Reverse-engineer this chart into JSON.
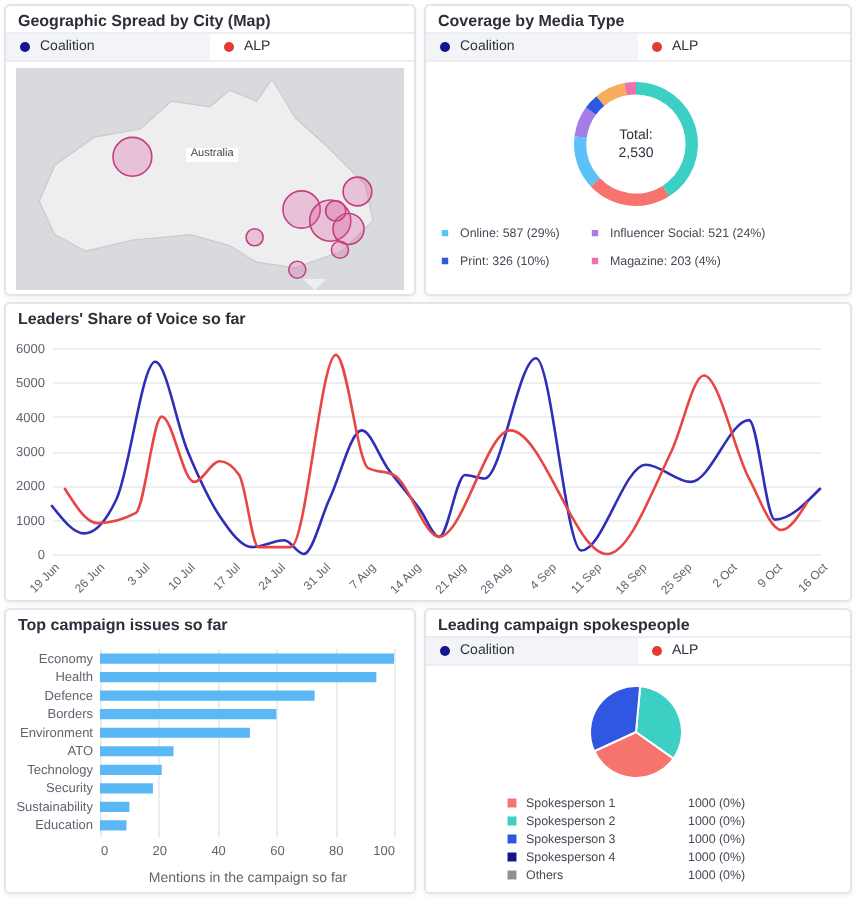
{
  "chart_data": [
    {
      "type": "other",
      "title": "Geographic Spread by City (Map)",
      "annotations": [
        "Coalition",
        "ALP",
        "Australia"
      ]
    },
    {
      "type": "donut",
      "title": "Coverage by Media Type",
      "categories": [
        null,
        null,
        "Online: 587 (29%)",
        "Influencer Social: 521 (24%)",
        "Print: 326 (10%)",
        null,
        "Magazine: 203 (4%)"
      ],
      "values": [
        41,
        22,
        14,
        8,
        4,
        8,
        3
      ],
      "colors": [
        "#3ccfc4",
        "#f7736e",
        "#5cc1f7",
        "#a67de6",
        "#2f57e2",
        "#f7ae5c",
        "#f06fae"
      ],
      "legend": "bottom",
      "annotations": [
        "Coalition",
        "ALP",
        "Total:",
        "2,530"
      ]
    },
    {
      "type": "line",
      "title": "Leaders' Share of Voice so far",
      "series": [
        {
          "color": "#2e2eb8",
          "x": [
            "--06-19",
            "--06-24",
            "--06-29",
            "--07-05",
            "--07-10",
            "--07-15",
            "--07-20",
            "--07-25",
            "--07-28",
            "--08-01",
            "--08-06",
            "--08-10",
            "--08-15",
            "--08-18",
            "--08-22",
            "--08-25",
            "--09-02",
            "--09-09",
            "--09-19",
            "--09-26",
            "--10-05",
            "--10-09",
            "--10-16"
          ],
          "values": [
            1400,
            600,
            1600,
            5600,
            3000,
            1100,
            200,
            400,
            0,
            1600,
            3600,
            2500,
            1300,
            500,
            2300,
            2200,
            5700,
            100,
            2600,
            2100,
            3900,
            1000,
            1900
          ]
        },
        {
          "color": "#e84545",
          "x": [
            "--06-21",
            "--06-26",
            "--07-02",
            "--07-06",
            "--07-11",
            "--07-15",
            "--07-18",
            "--07-21",
            "--07-26",
            "--08-02",
            "--08-07",
            "--08-11",
            "--08-18",
            "--08-29",
            "--09-13",
            "--09-23",
            "--09-28",
            "--10-05",
            "--10-10",
            "--10-14"
          ],
          "values": [
            1900,
            900,
            1200,
            4000,
            2100,
            2700,
            2300,
            200,
            200,
            5800,
            2500,
            2300,
            500,
            3600,
            0,
            3000,
            5200,
            2200,
            700,
            1500
          ]
        }
      ],
      "xlim": [
        "--06-19",
        "--10-16"
      ],
      "xticks": [
        {
          "value": "--06-19",
          "label": "19 Jun"
        },
        {
          "value": "--06-26",
          "label": "26 Jun"
        },
        {
          "value": "--07-03",
          "label": "3 Jul"
        },
        {
          "value": "--07-10",
          "label": "10 Jul"
        },
        {
          "value": "--07-17",
          "label": "17 Jul"
        },
        {
          "value": "--07-24",
          "label": "24 Jul"
        },
        {
          "value": "--07-31",
          "label": "31 Jul"
        },
        {
          "value": "--08-07",
          "label": "7 Aug"
        },
        {
          "value": "--08-14",
          "label": "14 Aug"
        },
        {
          "value": "--08-21",
          "label": "21 Aug"
        },
        {
          "value": "--08-28",
          "label": "28 Aug"
        },
        {
          "value": "--09-04",
          "label": "4 Sep"
        },
        {
          "value": "--09-11",
          "label": "11 Sep"
        },
        {
          "value": "--09-18",
          "label": "18 Sep"
        },
        {
          "value": "--09-25",
          "label": "25 Sep"
        },
        {
          "value": "--10-02",
          "label": "2 Oct"
        },
        {
          "value": "--10-09",
          "label": "9 Oct"
        },
        {
          "value": "--10-16",
          "label": "16 Oct"
        }
      ],
      "ylim": [
        0,
        6000
      ],
      "yticks": [
        0,
        1000,
        2000,
        3000,
        4000,
        5000,
        6000
      ],
      "grid": "y"
    },
    {
      "type": "bar",
      "orientation": "horizontal",
      "title": "Top campaign issues so far",
      "categories": [
        "Economy",
        "Health",
        "Defence",
        "Borders",
        "Environment",
        "ATO",
        "Technology",
        "Security",
        "Sustainability",
        "Education"
      ],
      "values": [
        100,
        94,
        73,
        60,
        51,
        25,
        21,
        18,
        10,
        9
      ],
      "color": "#5ab8f6",
      "xlabel": "Mentions in the campaign so far",
      "xlim": [
        0,
        100
      ],
      "xticks": [
        0,
        20,
        40,
        60,
        80,
        100
      ],
      "grid": "x"
    },
    {
      "type": "pie",
      "title": "Leading campaign spokespeople",
      "categories": [
        "Spokesperson 1",
        "Spokesperson 2",
        "Spokesperson 3",
        "Spokesperson 4",
        "Others"
      ],
      "values": [
        1000,
        1000,
        1000,
        null,
        null
      ],
      "value_labels": [
        "1000 (0%)",
        "1000 (0%)",
        "1000 (0%)",
        "1000 (0%)",
        "1000 (0%)"
      ],
      "colors": [
        "#f7736e",
        "#3ccfc4",
        "#2f57e2",
        "#14148a",
        "#8b9099"
      ],
      "legend": "bottom",
      "annotations": [
        "Coalition",
        "ALP"
      ]
    }
  ]
}
